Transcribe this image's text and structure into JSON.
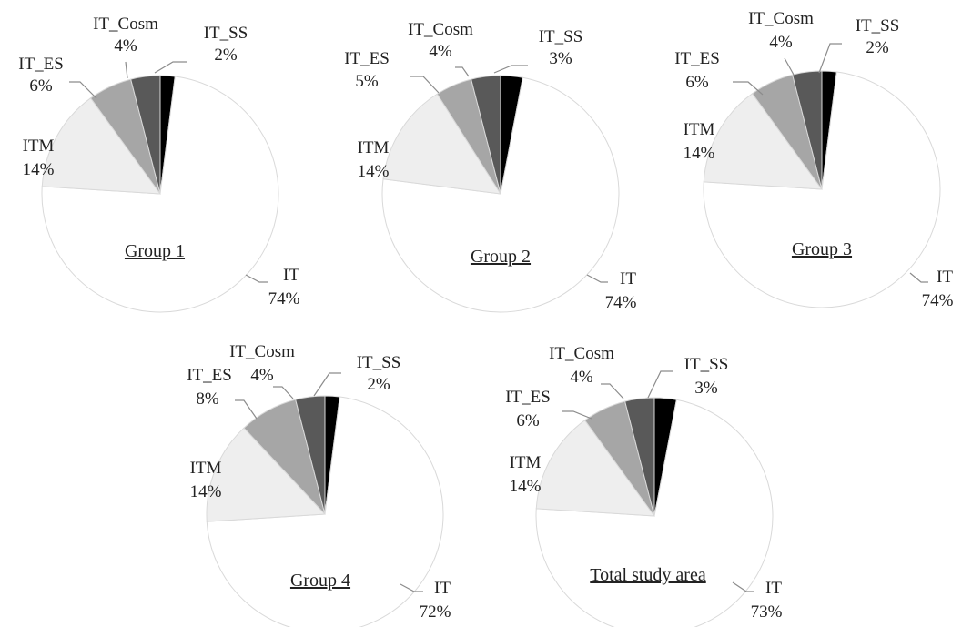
{
  "chart_data": [
    {
      "type": "pie",
      "title": "Group 1",
      "slices": [
        {
          "name": "IT_SS",
          "value": 2,
          "label": "2%",
          "color": "#000000"
        },
        {
          "name": "IT",
          "value": 74,
          "label": "74%",
          "color": "#ffffff"
        },
        {
          "name": "ITM",
          "value": 14,
          "label": "14%",
          "color": "#eeeeee"
        },
        {
          "name": "IT_ES",
          "value": 6,
          "label": "6%",
          "color": "#a6a6a6"
        },
        {
          "name": "IT_Cosm",
          "value": 4,
          "label": "4%",
          "color": "#595959"
        }
      ]
    },
    {
      "type": "pie",
      "title": "Group 2",
      "slices": [
        {
          "name": "IT_SS",
          "value": 3,
          "label": "3%",
          "color": "#000000"
        },
        {
          "name": "IT",
          "value": 74,
          "label": "74%",
          "color": "#ffffff"
        },
        {
          "name": "ITM",
          "value": 14,
          "label": "14%",
          "color": "#eeeeee"
        },
        {
          "name": "IT_ES",
          "value": 5,
          "label": "5%",
          "color": "#a6a6a6"
        },
        {
          "name": "IT_Cosm",
          "value": 4,
          "label": "4%",
          "color": "#595959"
        }
      ]
    },
    {
      "type": "pie",
      "title": "Group 3",
      "slices": [
        {
          "name": "IT_SS",
          "value": 2,
          "label": "2%",
          "color": "#000000"
        },
        {
          "name": "IT",
          "value": 74,
          "label": "74%",
          "color": "#ffffff"
        },
        {
          "name": "ITM",
          "value": 14,
          "label": "14%",
          "color": "#eeeeee"
        },
        {
          "name": "IT_ES",
          "value": 6,
          "label": "6%",
          "color": "#a6a6a6"
        },
        {
          "name": "IT_Cosm",
          "value": 4,
          "label": "4%",
          "color": "#595959"
        }
      ]
    },
    {
      "type": "pie",
      "title": "Group 4",
      "slices": [
        {
          "name": "IT_SS",
          "value": 2,
          "label": "2%",
          "color": "#000000"
        },
        {
          "name": "IT",
          "value": 72,
          "label": "72%",
          "color": "#ffffff"
        },
        {
          "name": "ITM",
          "value": 14,
          "label": "14%",
          "color": "#eeeeee"
        },
        {
          "name": "IT_ES",
          "value": 8,
          "label": "8%",
          "color": "#a6a6a6"
        },
        {
          "name": "IT_Cosm",
          "value": 4,
          "label": "4%",
          "color": "#595959"
        }
      ]
    },
    {
      "type": "pie",
      "title": "Total study area",
      "slices": [
        {
          "name": "IT_SS",
          "value": 3,
          "label": "3%",
          "color": "#000000"
        },
        {
          "name": "IT",
          "value": 73,
          "label": "73%",
          "color": "#ffffff"
        },
        {
          "name": "ITM",
          "value": 14,
          "label": "14%",
          "color": "#eeeeee"
        },
        {
          "name": "IT_ES",
          "value": 6,
          "label": "6%",
          "color": "#a6a6a6"
        },
        {
          "name": "IT_Cosm",
          "value": 4,
          "label": "4%",
          "color": "#595959"
        }
      ]
    }
  ]
}
